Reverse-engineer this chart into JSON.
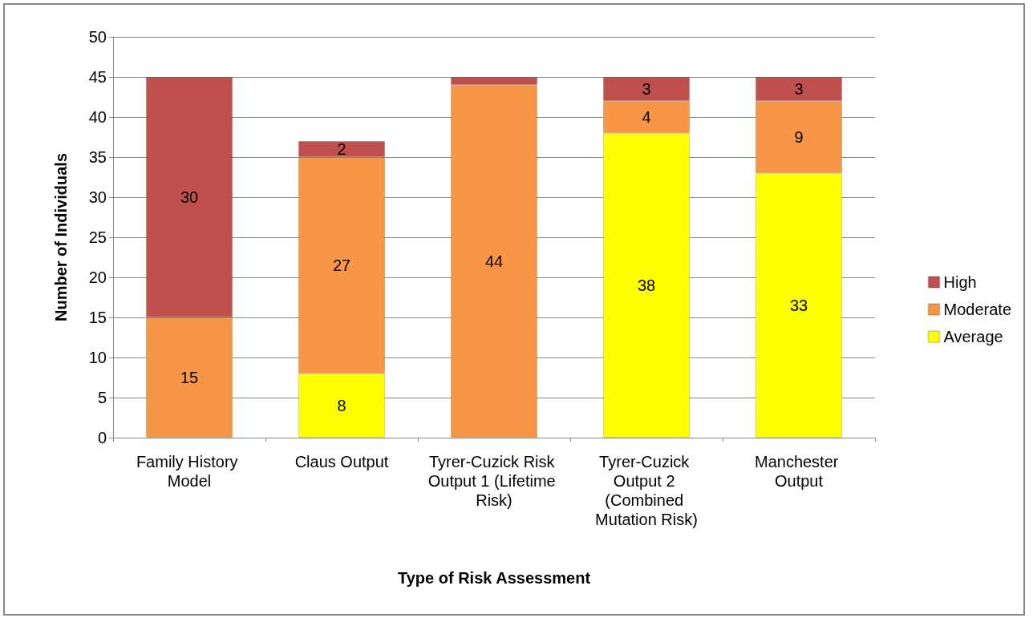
{
  "chart_data": {
    "type": "bar",
    "stacked": true,
    "xlabel": "Type of Risk Assessment",
    "ylabel": "Number of Individuals",
    "categories": [
      "Family History Model",
      "Claus Output",
      "Tyrer-Cuzick Risk Output 1 (Lifetime Risk)",
      "Tyrer-Cuzick Output 2 (Combined Mutation Risk)",
      "Manchester Output"
    ],
    "series": [
      {
        "name": "Average",
        "color": "#ffff00",
        "values": [
          null,
          8,
          null,
          38,
          33
        ],
        "value_labels": [
          null,
          "8",
          null,
          "38",
          "33"
        ]
      },
      {
        "name": "Moderate",
        "color": "#f79646",
        "values": [
          15,
          27,
          44,
          4,
          9
        ],
        "value_labels": [
          "15",
          "27",
          "44",
          "4",
          "9"
        ]
      },
      {
        "name": "High",
        "color": "#c0504d",
        "values": [
          30,
          2,
          1,
          3,
          3
        ],
        "value_labels": [
          "30",
          "2",
          null,
          "3",
          "3"
        ]
      }
    ],
    "ylim": [
      0,
      50
    ],
    "yticks": [
      0,
      5,
      10,
      15,
      20,
      25,
      30,
      35,
      40,
      45,
      50
    ],
    "grid": "y",
    "legend": "right"
  }
}
